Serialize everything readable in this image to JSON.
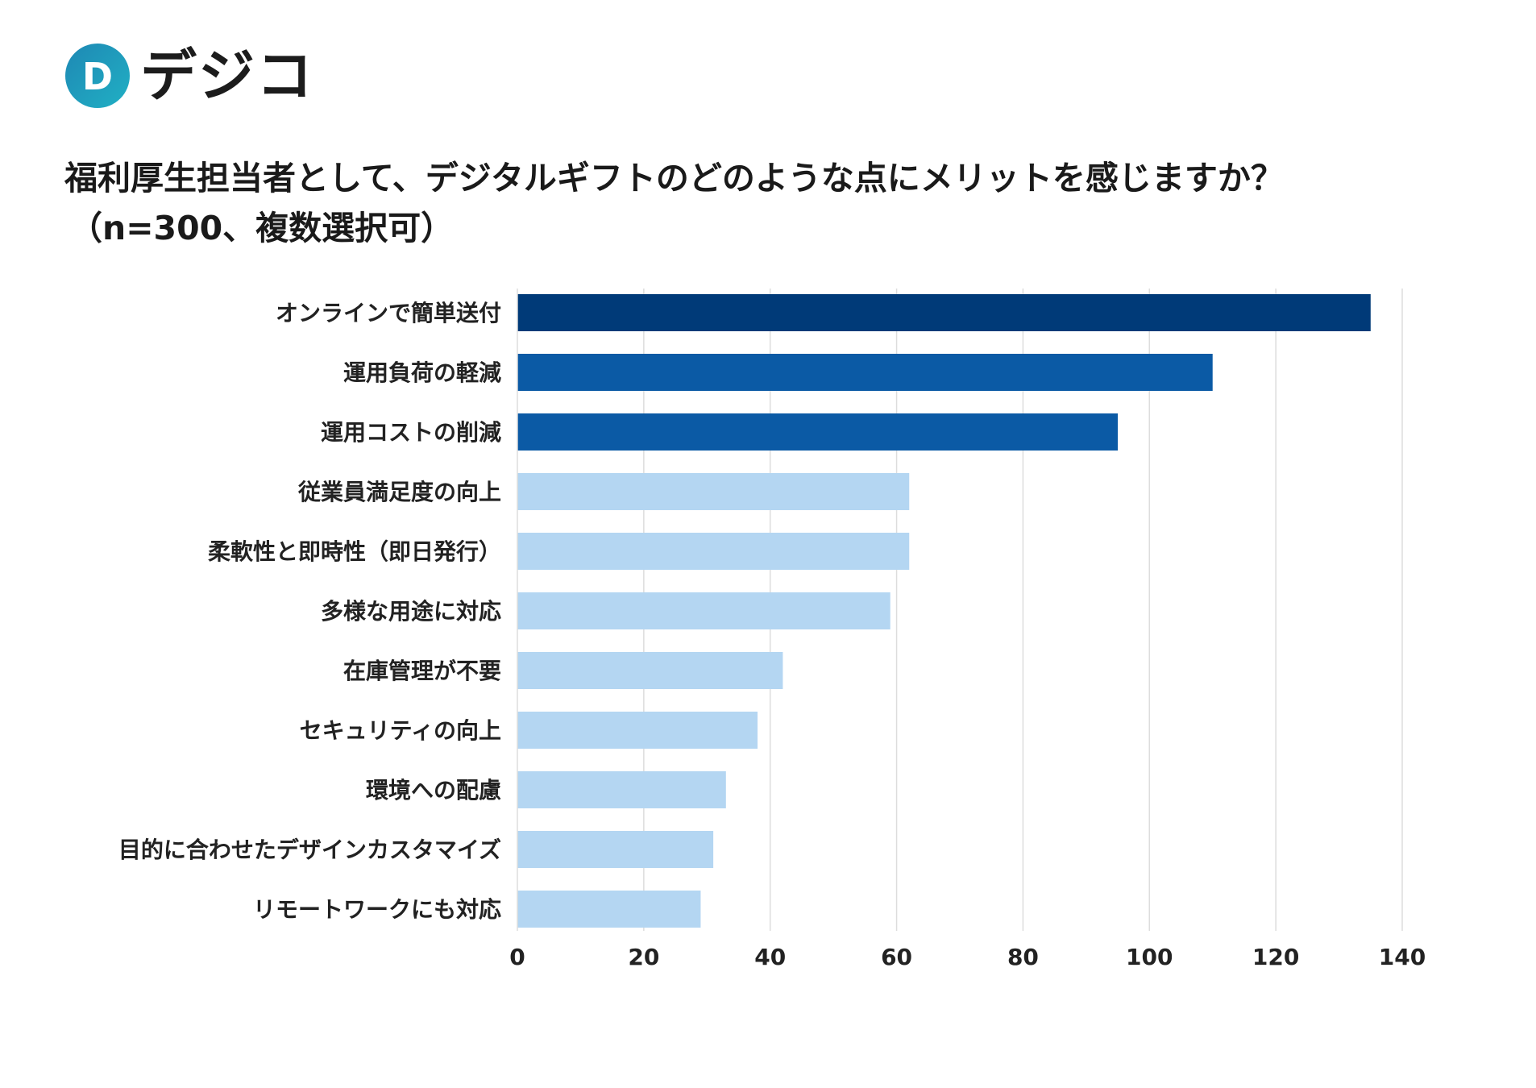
{
  "brand": {
    "name": "デジコ",
    "mark_letter": "D",
    "colors": {
      "mark_start": "#1e88b4",
      "mark_end": "#21b0c4",
      "dots": "#2aa7c9"
    }
  },
  "chart_data": {
    "type": "bar",
    "orientation": "horizontal",
    "title": "福利厚生担当者として、デジタルギフトのどのような点にメリットを感じますか？",
    "subtitle": "（n=300、複数選択可）",
    "categories": [
      "オンラインで簡単送付",
      "運用負荷の軽減",
      "運用コストの削減",
      "従業員満足度の向上",
      "柔軟性と即時性（即日発行）",
      "多様な用途に対応",
      "在庫管理が不要",
      "セキュリティの向上",
      "環境への配慮",
      "目的に合わせたデザインカスタマイズ",
      "リモートワークにも対応"
    ],
    "values": [
      135,
      110,
      95,
      62,
      62,
      59,
      42,
      38,
      33,
      31,
      29
    ],
    "bar_colors": [
      "#003a78",
      "#0b5aa5",
      "#0b5aa5",
      "#b4d6f2",
      "#b4d6f2",
      "#b4d6f2",
      "#b4d6f2",
      "#b4d6f2",
      "#b4d6f2",
      "#b4d6f2",
      "#b4d6f2"
    ],
    "xlim": [
      0,
      140
    ],
    "ticks": [
      0,
      20,
      40,
      60,
      80,
      100,
      120,
      140
    ],
    "xlabel": "",
    "ylabel": "",
    "grid": true,
    "grid_color": "#dddddd"
  }
}
